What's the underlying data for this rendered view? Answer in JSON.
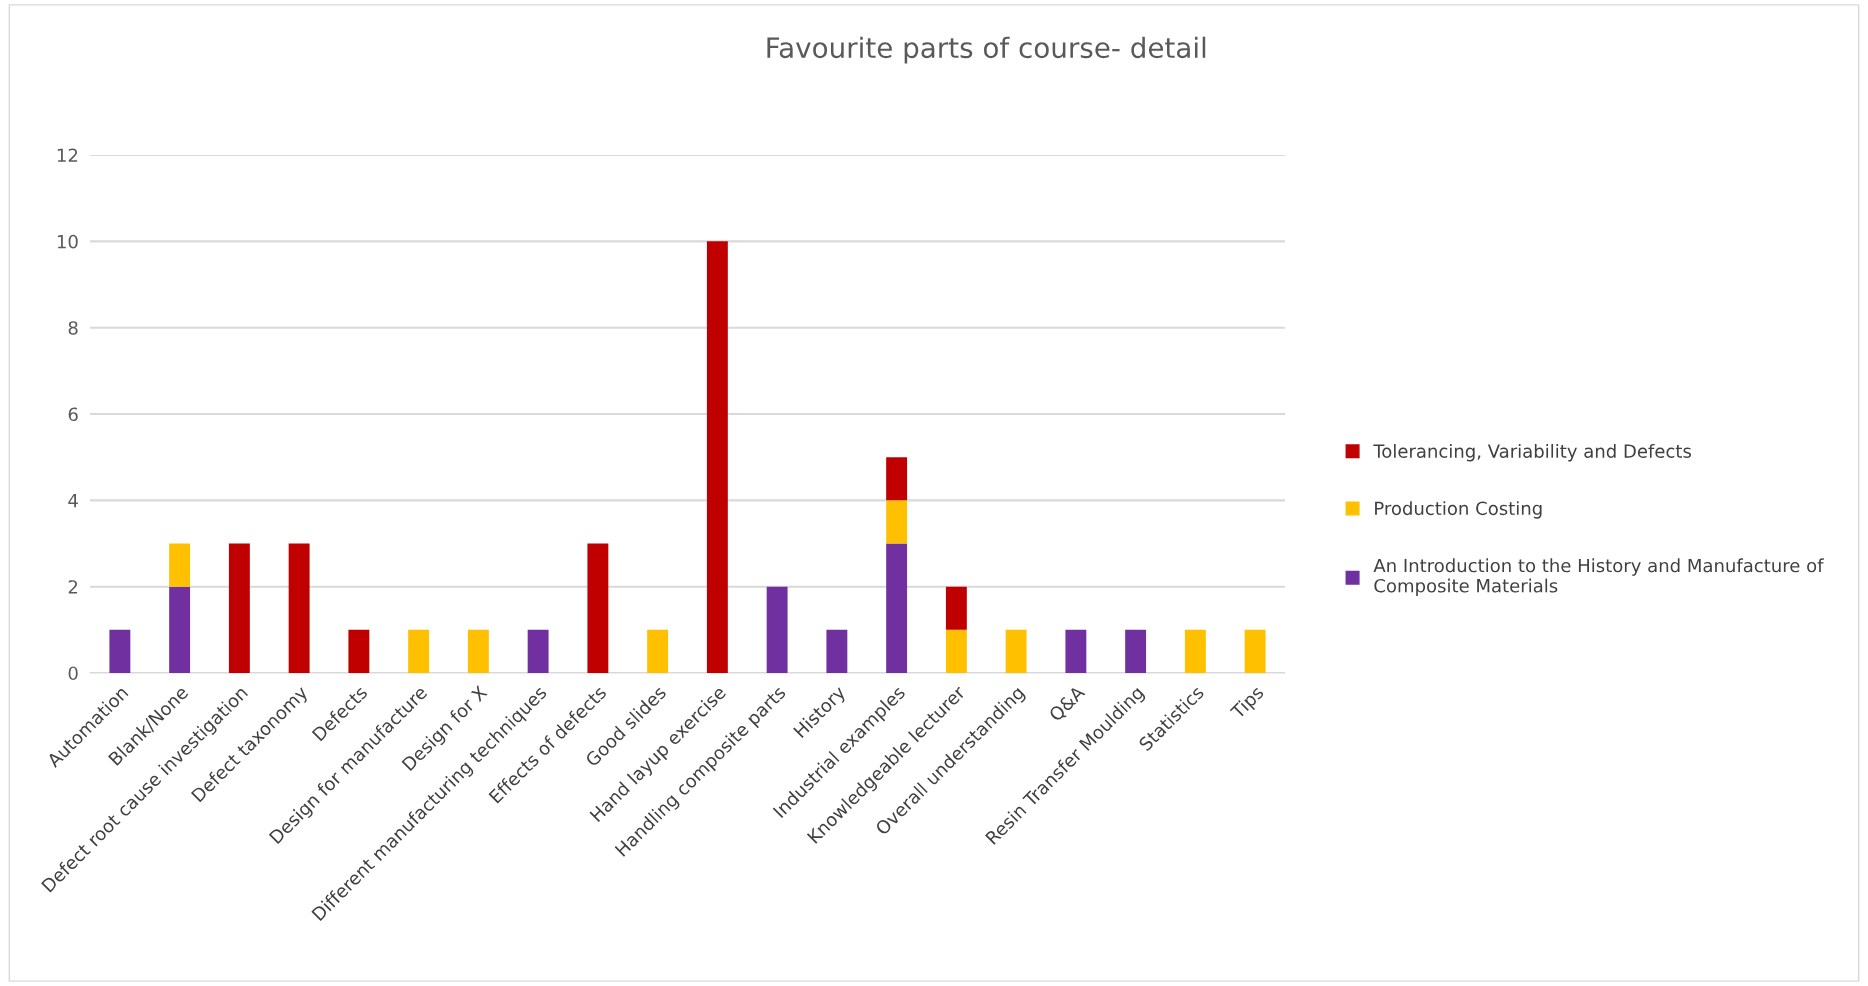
{
  "chart_data": {
    "type": "bar",
    "title": "Favourite parts of course- detail",
    "stacked": true,
    "categories": [
      "Automation",
      "Blank/None",
      "Defect root cause investigation",
      "Defect taxonomy",
      "Defects",
      "Design for manufacture",
      "Design for X",
      "Different manufacturing techniques",
      "Effects of defects",
      "Good slides",
      "Hand layup exercise",
      "Handling composite parts",
      "History",
      "Industrial examples",
      "Knowledgeable lecturer",
      "Overall understanding",
      "Q&A",
      "Resin Transfer Moulding",
      "Statistics",
      "Tips"
    ],
    "series": [
      {
        "name": "An Introduction to the History and Manufacture of Composite Materials",
        "color": "#7030a0",
        "values": [
          1,
          2,
          null,
          null,
          null,
          null,
          null,
          1,
          null,
          null,
          null,
          2,
          1,
          3,
          null,
          null,
          1,
          1,
          null,
          null
        ]
      },
      {
        "name": "Production Costing",
        "color": "#ffc000",
        "values": [
          null,
          1,
          null,
          null,
          null,
          1,
          1,
          null,
          null,
          1,
          null,
          null,
          null,
          1,
          1,
          1,
          null,
          null,
          1,
          1
        ]
      },
      {
        "name": "Tolerancing, Variability and Defects",
        "color": "#c00000",
        "values": [
          null,
          null,
          3,
          3,
          1,
          null,
          null,
          null,
          3,
          null,
          10,
          null,
          null,
          1,
          1,
          null,
          null,
          null,
          null,
          null
        ]
      }
    ],
    "ylim": [
      0,
      12
    ],
    "yticks": [
      0,
      2,
      4,
      6,
      8,
      10,
      12
    ],
    "grid": "y",
    "legend": "right"
  }
}
